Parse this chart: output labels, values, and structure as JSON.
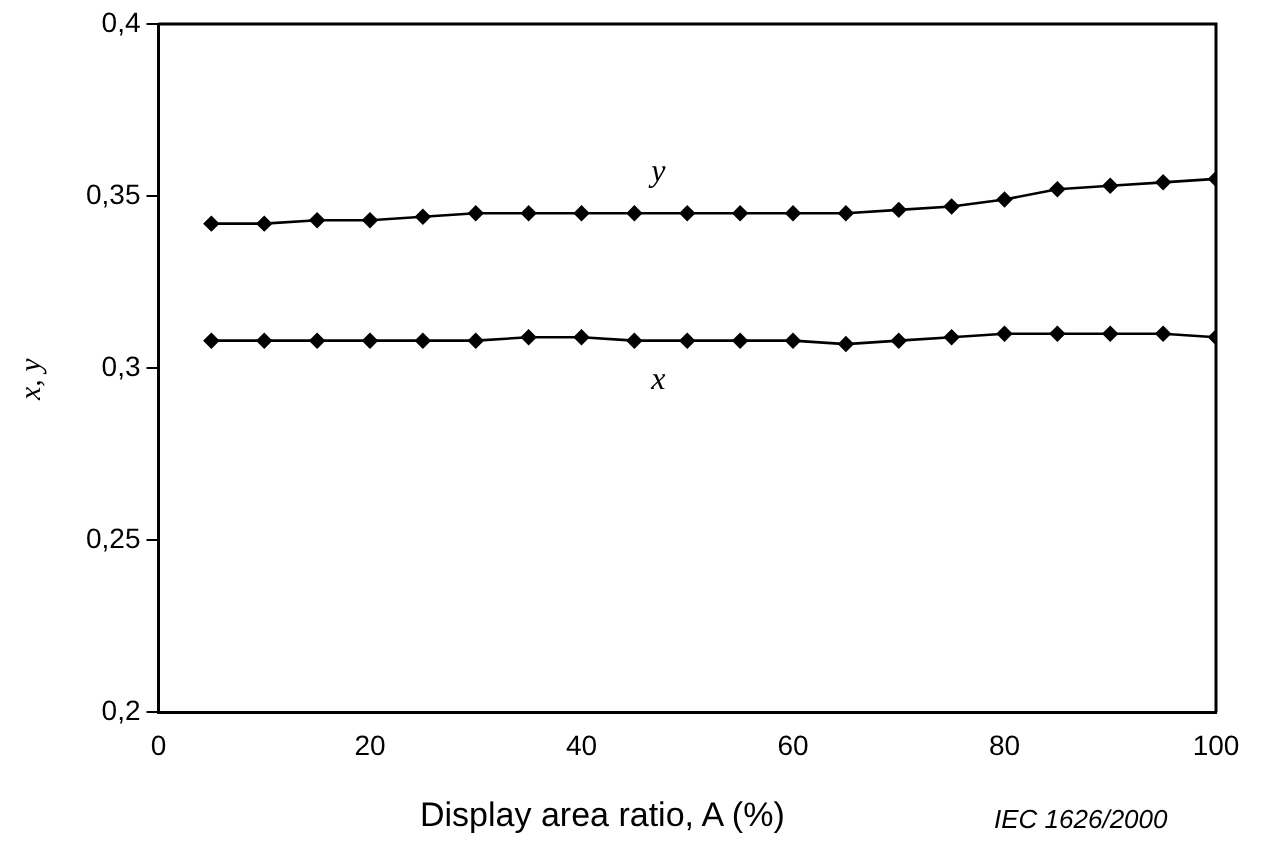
{
  "chart_data": {
    "type": "line",
    "xlabel": "Display area ratio, A (%)",
    "ylabel": "x, y",
    "x": [
      5,
      10,
      15,
      20,
      25,
      30,
      35,
      40,
      45,
      50,
      55,
      60,
      65,
      70,
      75,
      80,
      85,
      90,
      95,
      100
    ],
    "series": [
      {
        "name": "y",
        "color": "#000000",
        "values": [
          0.342,
          0.342,
          0.343,
          0.343,
          0.344,
          0.345,
          0.345,
          0.345,
          0.345,
          0.345,
          0.345,
          0.345,
          0.345,
          0.346,
          0.347,
          0.349,
          0.352,
          0.353,
          0.354,
          0.355
        ]
      },
      {
        "name": "x",
        "color": "#000000",
        "values": [
          0.308,
          0.308,
          0.308,
          0.308,
          0.308,
          0.308,
          0.309,
          0.309,
          0.308,
          0.308,
          0.308,
          0.308,
          0.307,
          0.308,
          0.309,
          0.31,
          0.31,
          0.31,
          0.31,
          0.309
        ]
      }
    ],
    "xlim": [
      0,
      100
    ],
    "xticks": [
      0,
      20,
      40,
      60,
      80,
      100
    ],
    "ylim": [
      0.2,
      0.4
    ],
    "yticks": [
      {
        "value": 0.2,
        "label": "0,2"
      },
      {
        "value": 0.25,
        "label": "0,25"
      },
      {
        "value": 0.3,
        "label": "0,3"
      },
      {
        "value": 0.35,
        "label": "0,35"
      },
      {
        "value": 0.4,
        "label": "0,4"
      }
    ],
    "marker": "diamond",
    "line_style": "solid",
    "grid": false,
    "legend": false,
    "annotations": [
      "IEC 1626/2000"
    ]
  }
}
